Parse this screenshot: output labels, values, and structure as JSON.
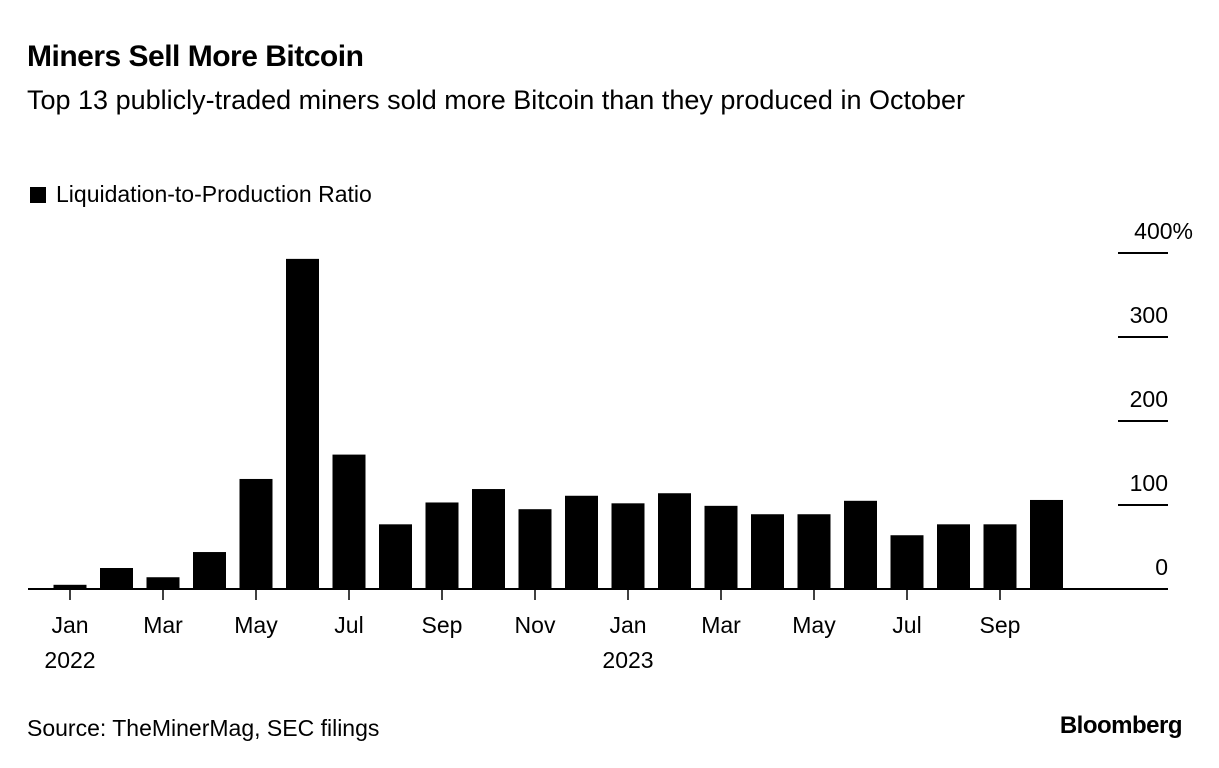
{
  "title": "Miners Sell More Bitcoin",
  "subtitle": "Top 13 publicly-traded miners sold more Bitcoin than they produced in October",
  "source": "Source: TheMinerMag, SEC filings",
  "logo": "Bloomberg",
  "chart_data": {
    "type": "bar",
    "legend": {
      "label": "Liquidation-to-Production Ratio",
      "position": "top-left"
    },
    "color": "#000000",
    "categories": [
      "2022-01",
      "2022-02",
      "2022-03",
      "2022-04",
      "2022-05",
      "2022-06",
      "2022-07",
      "2022-08",
      "2022-09",
      "2022-10",
      "2022-11",
      "2022-12",
      "2023-01",
      "2023-02",
      "2023-03",
      "2023-04",
      "2023-05",
      "2023-06",
      "2023-07",
      "2023-08",
      "2023-09",
      "2023-10"
    ],
    "values": [
      5,
      25,
      14,
      44,
      131,
      393,
      160,
      77,
      103,
      119,
      95,
      111,
      102,
      114,
      99,
      89,
      89,
      105,
      64,
      77,
      77,
      106
    ],
    "unit": "%",
    "ylim": [
      0,
      400
    ],
    "y_axis_position": "right",
    "y_ticks": [
      {
        "value": 0,
        "label": "0"
      },
      {
        "value": 100,
        "label": "100"
      },
      {
        "value": 200,
        "label": "200"
      },
      {
        "value": 300,
        "label": "300"
      },
      {
        "value": 400,
        "label": "400%"
      }
    ],
    "x_ticks": [
      {
        "index": 0,
        "label": "Jan",
        "year": "2022"
      },
      {
        "index": 2,
        "label": "Mar"
      },
      {
        "index": 4,
        "label": "May"
      },
      {
        "index": 6,
        "label": "Jul"
      },
      {
        "index": 8,
        "label": "Sep"
      },
      {
        "index": 10,
        "label": "Nov"
      },
      {
        "index": 12,
        "label": "Jan",
        "year": "2023"
      },
      {
        "index": 14,
        "label": "Mar"
      },
      {
        "index": 16,
        "label": "May"
      },
      {
        "index": 18,
        "label": "Jul"
      },
      {
        "index": 20,
        "label": "Sep"
      }
    ],
    "grid": false
  }
}
